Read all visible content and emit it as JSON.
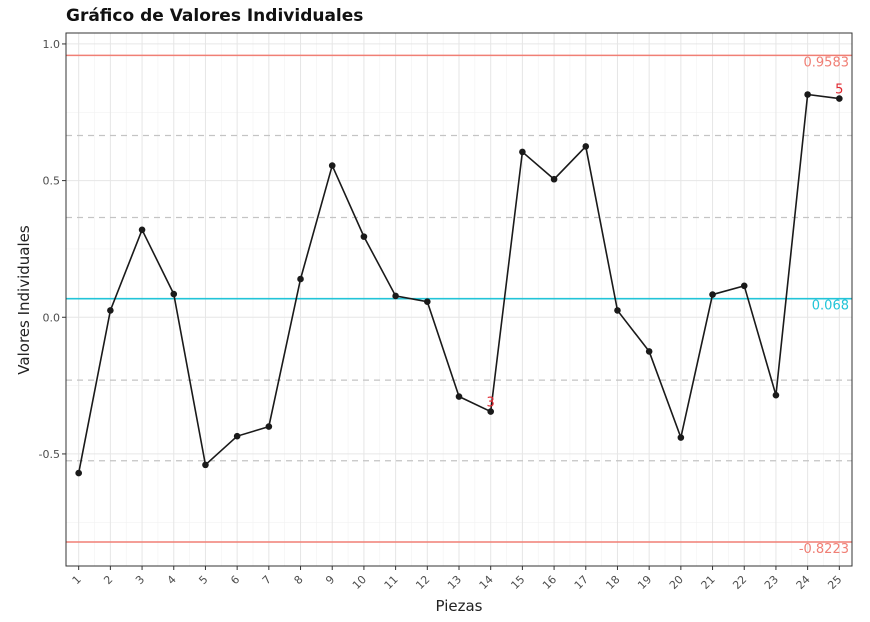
{
  "chart_data": {
    "type": "line",
    "title": "Gráfico de Valores Individuales",
    "xlabel": "Piezas",
    "ylabel": "Valores Individuales",
    "x": [
      1,
      2,
      3,
      4,
      5,
      6,
      7,
      8,
      9,
      10,
      11,
      12,
      13,
      14,
      15,
      16,
      17,
      18,
      19,
      20,
      21,
      22,
      23,
      24,
      25
    ],
    "x_tick_labels": [
      "1",
      "2",
      "3",
      "4",
      "5",
      "6",
      "7",
      "8",
      "9",
      "10",
      "11",
      "12",
      "13",
      "14",
      "15",
      "16",
      "17",
      "18",
      "19",
      "20",
      "21",
      "22",
      "23",
      "24",
      "25"
    ],
    "values": [
      -0.57,
      0.025,
      0.32,
      0.085,
      -0.54,
      -0.435,
      -0.4,
      0.14,
      0.555,
      0.295,
      0.078,
      0.057,
      -0.29,
      -0.345,
      0.605,
      0.505,
      0.625,
      0.025,
      -0.125,
      -0.44,
      0.083,
      0.115,
      -0.285,
      0.815,
      0.8
    ],
    "ylim": [
      -0.91,
      1.04
    ],
    "xlim": [
      0.6,
      25.4
    ],
    "y_ticks": [
      -0.5,
      0.0,
      0.5,
      1.0
    ],
    "y_tick_labels": [
      "-0.5",
      "0.0",
      "0.5",
      "1.0"
    ],
    "center_line": {
      "value": 0.068,
      "label": "0.068",
      "color": "#22c4d8"
    },
    "upper_limit": {
      "value": 0.9583,
      "label": "0.9583",
      "color": "#f07f75"
    },
    "lower_limit": {
      "value": -0.8223,
      "label": "-0.8223",
      "color": "#f07f75"
    },
    "zone_lines": [
      0.665,
      0.365,
      -0.23,
      -0.525
    ],
    "flags": [
      {
        "x": 14,
        "label": "3",
        "color": "#e0262f"
      },
      {
        "x": 25,
        "label": "5",
        "color": "#e0262f"
      }
    ],
    "line_color": "#1a1a1a",
    "grid": true
  }
}
